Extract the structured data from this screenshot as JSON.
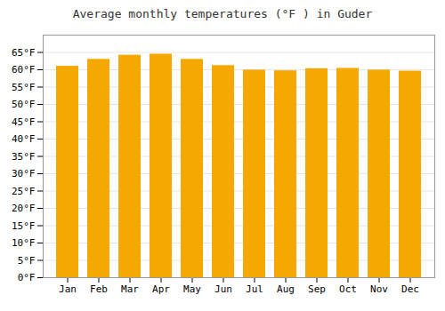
{
  "chart_data": {
    "type": "bar",
    "title": "Average monthly temperatures (°F ) in Guder",
    "categories": [
      "Jan",
      "Feb",
      "Mar",
      "Apr",
      "May",
      "Jun",
      "Jul",
      "Aug",
      "Sep",
      "Oct",
      "Nov",
      "Dec"
    ],
    "values": [
      61.0,
      63.0,
      64.2,
      64.5,
      63.0,
      61.2,
      59.9,
      59.7,
      60.3,
      60.4,
      59.9,
      59.6
    ],
    "color": "#F5A800",
    "ylim": [
      0,
      70
    ],
    "yticks": [
      {
        "value": 0,
        "label": "0°F"
      },
      {
        "value": 5,
        "label": "5°F"
      },
      {
        "value": 10,
        "label": "10°F"
      },
      {
        "value": 15,
        "label": "15°F"
      },
      {
        "value": 20,
        "label": "20°F"
      },
      {
        "value": 25,
        "label": "25°F"
      },
      {
        "value": 30,
        "label": "30°F"
      },
      {
        "value": 35,
        "label": "35°F"
      },
      {
        "value": 40,
        "label": "40°F"
      },
      {
        "value": 45,
        "label": "45°F"
      },
      {
        "value": 50,
        "label": "50°F"
      },
      {
        "value": 55,
        "label": "55°F"
      },
      {
        "value": 60,
        "label": "60°F"
      },
      {
        "value": 65,
        "label": "65°F"
      }
    ],
    "grid": true
  }
}
